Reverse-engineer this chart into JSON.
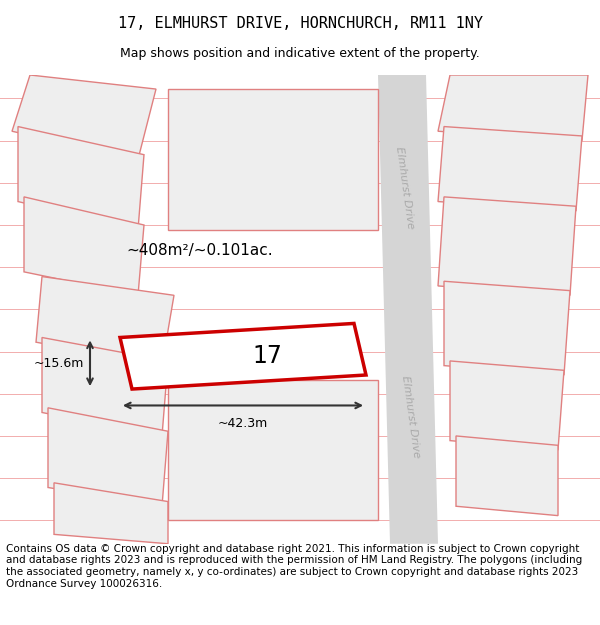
{
  "title": "17, ELMHURST DRIVE, HORNCHURCH, RM11 1NY",
  "subtitle": "Map shows position and indicative extent of the property.",
  "footer": "Contains OS data © Crown copyright and database right 2021. This information is subject to Crown copyright and database rights 2023 and is reproduced with the permission of HM Land Registry. The polygons (including the associated geometry, namely x, y co-ordinates) are subject to Crown copyright and database rights 2023 Ordnance Survey 100026316.",
  "area_label": "~408m²/~0.101ac.",
  "width_label": "~42.3m",
  "height_label": "~15.6m",
  "number_label": "17",
  "background_color": "#ffffff",
  "map_bg": "#f8f8f8",
  "road_color": "#d5d5d5",
  "property_outline_color": "#cc0000",
  "property_fill": "#ffffff",
  "neighbor_outline": "#e08080",
  "neighbor_fill": "#eeeeee",
  "street_label": "Elmhurst Drive",
  "title_fontsize": 11,
  "subtitle_fontsize": 9,
  "footer_fontsize": 7.5
}
